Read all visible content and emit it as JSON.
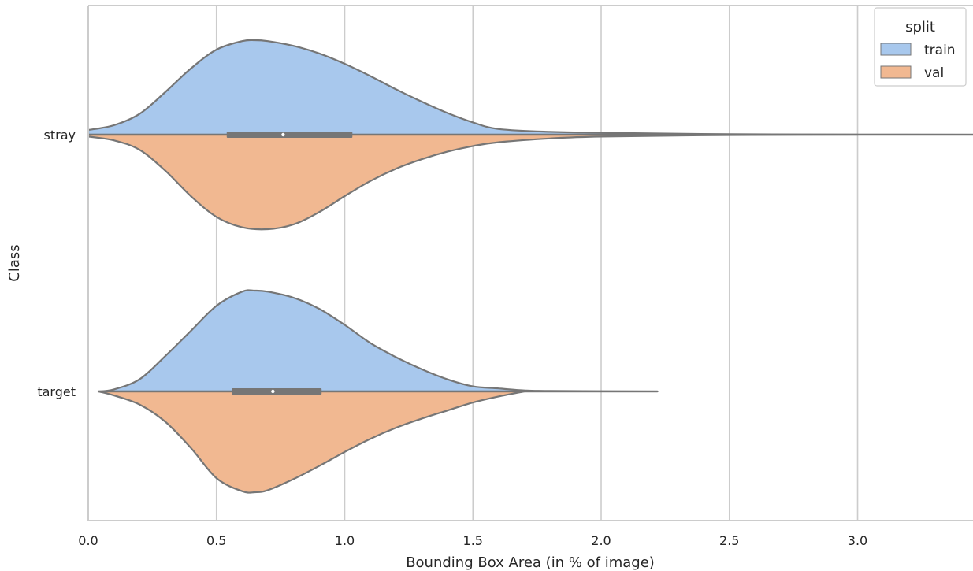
{
  "chart_data": {
    "type": "violin",
    "orientation": "horizontal",
    "split": true,
    "xlabel": "Bounding Box Area (in % of image)",
    "ylabel": "Class",
    "xlim": [
      0.0,
      3.45
    ],
    "x_ticks": [
      0.0,
      0.5,
      1.0,
      1.5,
      2.0,
      2.5,
      3.0
    ],
    "x_tick_labels": [
      "0.0",
      "0.5",
      "1.0",
      "1.5",
      "2.0",
      "2.5",
      "3.0"
    ],
    "categories": [
      "stray",
      "target"
    ],
    "grid": "vertical",
    "legend": {
      "title": "split",
      "position": "top-right",
      "entries": [
        "train",
        "val"
      ]
    },
    "colors": {
      "train": "#a8c8ed",
      "val": "#f1b891",
      "outline": "#767676",
      "grid": "#cccccc",
      "spine": "#cccccc"
    },
    "series": [
      {
        "name": "train",
        "violins": [
          {
            "category": "stray",
            "profile": [
              [
                0.0,
                0.05
              ],
              [
                0.1,
                0.1
              ],
              [
                0.2,
                0.22
              ],
              [
                0.3,
                0.45
              ],
              [
                0.4,
                0.7
              ],
              [
                0.5,
                0.9
              ],
              [
                0.6,
                0.99
              ],
              [
                0.65,
                1.0
              ],
              [
                0.7,
                0.99
              ],
              [
                0.8,
                0.94
              ],
              [
                0.9,
                0.86
              ],
              [
                1.0,
                0.75
              ],
              [
                1.1,
                0.62
              ],
              [
                1.2,
                0.48
              ],
              [
                1.3,
                0.35
              ],
              [
                1.4,
                0.23
              ],
              [
                1.5,
                0.13
              ],
              [
                1.6,
                0.06
              ],
              [
                1.8,
                0.03
              ],
              [
                2.0,
                0.02
              ],
              [
                2.5,
                0.005
              ],
              [
                3.0,
                0.002
              ],
              [
                3.45,
                0.0
              ]
            ]
          },
          {
            "category": "target",
            "profile": [
              [
                0.04,
                0.0
              ],
              [
                0.1,
                0.02
              ],
              [
                0.2,
                0.12
              ],
              [
                0.3,
                0.35
              ],
              [
                0.4,
                0.6
              ],
              [
                0.5,
                0.85
              ],
              [
                0.6,
                0.99
              ],
              [
                0.65,
                1.0
              ],
              [
                0.7,
                0.99
              ],
              [
                0.8,
                0.93
              ],
              [
                0.9,
                0.82
              ],
              [
                1.0,
                0.66
              ],
              [
                1.1,
                0.48
              ],
              [
                1.2,
                0.34
              ],
              [
                1.3,
                0.22
              ],
              [
                1.4,
                0.12
              ],
              [
                1.5,
                0.05
              ],
              [
                1.6,
                0.03
              ],
              [
                1.7,
                0.01
              ],
              [
                1.8,
                0.005
              ],
              [
                2.22,
                0.0
              ]
            ]
          }
        ]
      },
      {
        "name": "val",
        "violins": [
          {
            "category": "stray",
            "profile": [
              [
                0.0,
                0.02
              ],
              [
                0.1,
                0.06
              ],
              [
                0.2,
                0.16
              ],
              [
                0.3,
                0.38
              ],
              [
                0.4,
                0.65
              ],
              [
                0.5,
                0.87
              ],
              [
                0.6,
                0.98
              ],
              [
                0.7,
                1.0
              ],
              [
                0.8,
                0.95
              ],
              [
                0.9,
                0.82
              ],
              [
                1.0,
                0.65
              ],
              [
                1.1,
                0.49
              ],
              [
                1.2,
                0.36
              ],
              [
                1.3,
                0.26
              ],
              [
                1.4,
                0.18
              ],
              [
                1.5,
                0.12
              ],
              [
                1.6,
                0.08
              ],
              [
                1.8,
                0.04
              ],
              [
                2.0,
                0.02
              ],
              [
                2.5,
                0.004
              ],
              [
                3.0,
                0.0
              ]
            ]
          },
          {
            "category": "target",
            "profile": [
              [
                0.04,
                0.0
              ],
              [
                0.1,
                0.04
              ],
              [
                0.2,
                0.13
              ],
              [
                0.3,
                0.3
              ],
              [
                0.4,
                0.56
              ],
              [
                0.5,
                0.86
              ],
              [
                0.6,
                0.99
              ],
              [
                0.65,
                1.0
              ],
              [
                0.7,
                0.98
              ],
              [
                0.8,
                0.87
              ],
              [
                0.9,
                0.74
              ],
              [
                1.0,
                0.6
              ],
              [
                1.1,
                0.47
              ],
              [
                1.2,
                0.36
              ],
              [
                1.3,
                0.27
              ],
              [
                1.4,
                0.19
              ],
              [
                1.5,
                0.11
              ],
              [
                1.6,
                0.05
              ],
              [
                1.7,
                0.0
              ]
            ]
          }
        ]
      }
    ],
    "boxes": [
      {
        "category": "stray",
        "whisker": [
          0.0,
          3.45
        ],
        "q1": 0.54,
        "q3": 1.03,
        "median": 0.76
      },
      {
        "category": "target",
        "whisker": [
          0.04,
          2.22
        ],
        "q1": 0.56,
        "q3": 0.91,
        "median": 0.72
      }
    ]
  }
}
